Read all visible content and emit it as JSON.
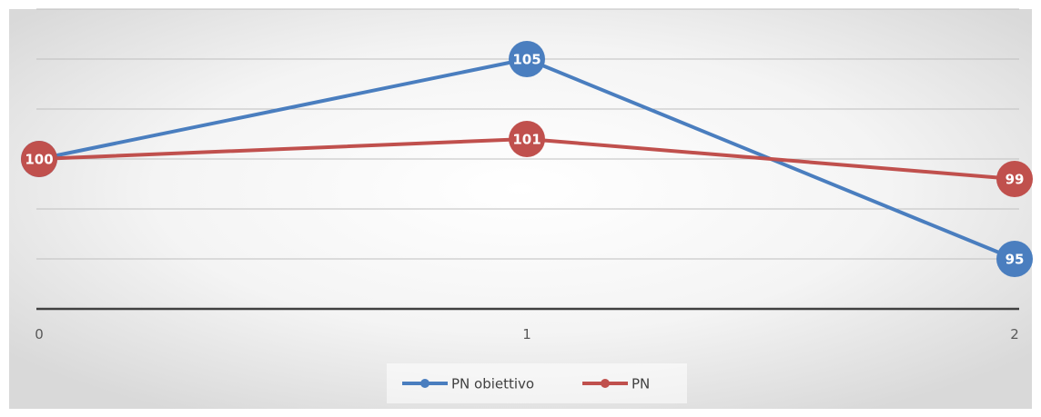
{
  "chart_data": {
    "type": "line",
    "title": "",
    "xlabel": "",
    "ylabel": "",
    "x": [
      0,
      1,
      2
    ],
    "x_tick_labels": [
      "0",
      "1",
      "2"
    ],
    "ylim": [
      92.5,
      107.5
    ],
    "gridlines_y": [
      95,
      97.5,
      100,
      102.5,
      105,
      107.5
    ],
    "grid": true,
    "legend_position": "bottom",
    "series": [
      {
        "name": "PN obiettivo",
        "values": [
          100,
          105,
          95
        ],
        "labels": [
          "100",
          "105",
          "95"
        ],
        "color": "#4a7ebf"
      },
      {
        "name": "PN",
        "values": [
          100,
          101,
          99
        ],
        "labels": [
          "100",
          "101",
          "99"
        ],
        "color": "#c0504d"
      }
    ]
  }
}
